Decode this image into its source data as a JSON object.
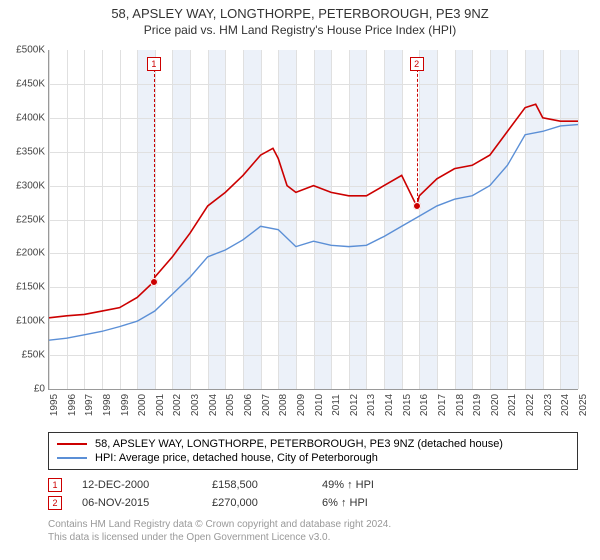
{
  "title": "58, APSLEY WAY, LONGTHORPE, PETERBOROUGH, PE3 9NZ",
  "subtitle": "Price paid vs. HM Land Registry's House Price Index (HPI)",
  "chart": {
    "type": "line",
    "x_years": [
      1995,
      1996,
      1997,
      1998,
      1999,
      2000,
      2001,
      2002,
      2003,
      2004,
      2005,
      2006,
      2007,
      2008,
      2009,
      2010,
      2011,
      2012,
      2013,
      2014,
      2015,
      2016,
      2017,
      2018,
      2019,
      2020,
      2021,
      2022,
      2023,
      2024,
      2025
    ],
    "xlim": [
      1995,
      2025
    ],
    "ylim": [
      0,
      500000
    ],
    "ytick_step": 50000,
    "y_prefix": "£",
    "y_suffix": "K",
    "background_color": "#ffffff",
    "grid_color": "#e0e0e0",
    "shaded_bands_color": "#dce6f4",
    "shaded_bands": [
      [
        2000,
        2001
      ],
      [
        2002,
        2003
      ],
      [
        2004,
        2005
      ],
      [
        2006,
        2007
      ],
      [
        2008,
        2009
      ],
      [
        2010,
        2011
      ],
      [
        2012,
        2013
      ],
      [
        2014,
        2015
      ],
      [
        2016,
        2017
      ],
      [
        2018,
        2019
      ],
      [
        2020,
        2021
      ],
      [
        2022,
        2023
      ],
      [
        2024,
        2025
      ]
    ],
    "series": [
      {
        "name": "price_paid",
        "color": "#cc0000",
        "line_width": 1.6,
        "points": [
          [
            1995,
            105000
          ],
          [
            1996,
            108000
          ],
          [
            1997,
            110000
          ],
          [
            1998,
            115000
          ],
          [
            1999,
            120000
          ],
          [
            2000,
            135000
          ],
          [
            2000.95,
            158500
          ],
          [
            2001,
            165000
          ],
          [
            2002,
            195000
          ],
          [
            2003,
            230000
          ],
          [
            2004,
            270000
          ],
          [
            2005,
            290000
          ],
          [
            2006,
            315000
          ],
          [
            2007,
            345000
          ],
          [
            2007.7,
            355000
          ],
          [
            2008,
            340000
          ],
          [
            2008.5,
            300000
          ],
          [
            2009,
            290000
          ],
          [
            2010,
            300000
          ],
          [
            2011,
            290000
          ],
          [
            2012,
            285000
          ],
          [
            2013,
            285000
          ],
          [
            2014,
            300000
          ],
          [
            2015,
            315000
          ],
          [
            2015.85,
            270000
          ],
          [
            2016,
            285000
          ],
          [
            2017,
            310000
          ],
          [
            2018,
            325000
          ],
          [
            2019,
            330000
          ],
          [
            2020,
            345000
          ],
          [
            2021,
            380000
          ],
          [
            2022,
            415000
          ],
          [
            2022.6,
            420000
          ],
          [
            2023,
            400000
          ],
          [
            2024,
            395000
          ],
          [
            2025,
            395000
          ]
        ]
      },
      {
        "name": "hpi",
        "color": "#5b8fd6",
        "line_width": 1.4,
        "points": [
          [
            1995,
            72000
          ],
          [
            1996,
            75000
          ],
          [
            1997,
            80000
          ],
          [
            1998,
            85000
          ],
          [
            1999,
            92000
          ],
          [
            2000,
            100000
          ],
          [
            2001,
            115000
          ],
          [
            2002,
            140000
          ],
          [
            2003,
            165000
          ],
          [
            2004,
            195000
          ],
          [
            2005,
            205000
          ],
          [
            2006,
            220000
          ],
          [
            2007,
            240000
          ],
          [
            2008,
            235000
          ],
          [
            2009,
            210000
          ],
          [
            2010,
            218000
          ],
          [
            2011,
            212000
          ],
          [
            2012,
            210000
          ],
          [
            2013,
            212000
          ],
          [
            2014,
            225000
          ],
          [
            2015,
            240000
          ],
          [
            2016,
            255000
          ],
          [
            2017,
            270000
          ],
          [
            2018,
            280000
          ],
          [
            2019,
            285000
          ],
          [
            2020,
            300000
          ],
          [
            2021,
            330000
          ],
          [
            2022,
            375000
          ],
          [
            2023,
            380000
          ],
          [
            2024,
            388000
          ],
          [
            2025,
            390000
          ]
        ]
      }
    ],
    "sale_markers": [
      {
        "idx": "1",
        "year": 2000.95,
        "price": 158500
      },
      {
        "idx": "2",
        "year": 2015.85,
        "price": 270000
      }
    ]
  },
  "legend": {
    "series1": "58, APSLEY WAY, LONGTHORPE, PETERBOROUGH, PE3 9NZ (detached house)",
    "series2": "HPI: Average price, detached house, City of Peterborough"
  },
  "sales": [
    {
      "idx": "1",
      "date": "12-DEC-2000",
      "price": "£158,500",
      "pct": "49% ↑ HPI"
    },
    {
      "idx": "2",
      "date": "06-NOV-2015",
      "price": "£270,000",
      "pct": "6% ↑ HPI"
    }
  ],
  "footnote1": "Contains HM Land Registry data © Crown copyright and database right 2024.",
  "footnote2": "This data is licensed under the Open Government Licence v3.0."
}
